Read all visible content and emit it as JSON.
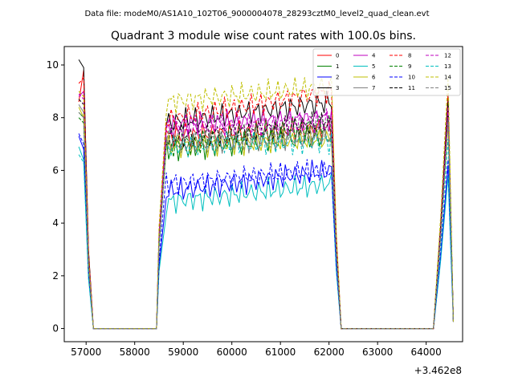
{
  "chart_data": {
    "type": "line",
    "suptitle": "Data file: modeM0/AS1A10_102T06_9000004078_28293cztM0_level2_quad_clean.evt",
    "title": "Quadrant 3 module wise count rates with 100.0s bins.",
    "xlabel": "",
    "ylabel": "",
    "x_offset_label": "+3.462e8",
    "xlim": [
      56550,
      64750
    ],
    "ylim": [
      -0.5,
      10.7
    ],
    "x_ticks": [
      57000,
      58000,
      59000,
      60000,
      61000,
      62000,
      63000,
      64000
    ],
    "x_tick_labels": [
      "57000",
      "58000",
      "59000",
      "60000",
      "61000",
      "62000",
      "63000",
      "64000"
    ],
    "y_ticks": [
      0,
      2,
      4,
      6,
      8,
      10
    ],
    "y_tick_labels": [
      "0",
      "2",
      "4",
      "6",
      "8",
      "10"
    ],
    "grid": false,
    "legend_position": "top-right",
    "legend_columns": 4,
    "series": [
      {
        "name": "0",
        "color": "#ff0000",
        "dash": "solid",
        "head": [
          8.6,
          9.8
        ],
        "b1": 7.3,
        "b2": 7.6,
        "tail": 8.5
      },
      {
        "name": "1",
        "color": "#008000",
        "dash": "solid",
        "head": [
          8.2,
          8.0
        ],
        "b1": 6.8,
        "b2": 7.3,
        "tail": 8.2
      },
      {
        "name": "2",
        "color": "#0000ff",
        "dash": "solid",
        "head": [
          7.3,
          6.8
        ],
        "b1": 5.2,
        "b2": 6.0,
        "tail": 6.2
      },
      {
        "name": "3",
        "color": "#000000",
        "dash": "solid",
        "head": [
          10.2,
          9.9
        ],
        "b1": 7.8,
        "b2": 8.6,
        "tail": 8.8
      },
      {
        "name": "4",
        "color": "#bf00bf",
        "dash": "solid",
        "head": [
          8.8,
          9.0
        ],
        "b1": 7.7,
        "b2": 8.0,
        "tail": 8.3
      },
      {
        "name": "5",
        "color": "#00bfbf",
        "dash": "solid",
        "head": [
          6.9,
          6.4
        ],
        "b1": 4.8,
        "b2": 5.5,
        "tail": 5.8
      },
      {
        "name": "6",
        "color": "#bfbf00",
        "dash": "solid",
        "head": [
          8.4,
          8.0
        ],
        "b1": 6.9,
        "b2": 7.2,
        "tail": 7.8
      },
      {
        "name": "7",
        "color": "#808080",
        "dash": "solid",
        "head": [
          8.5,
          8.2
        ],
        "b1": 7.0,
        "b2": 7.3,
        "tail": 8.0
      },
      {
        "name": "8",
        "color": "#ff0000",
        "dash": "dashed",
        "head": [
          9.3,
          9.5
        ],
        "b1": 7.9,
        "b2": 9.0,
        "tail": 8.9
      },
      {
        "name": "9",
        "color": "#008000",
        "dash": "dashed",
        "head": [
          8.0,
          7.8
        ],
        "b1": 6.9,
        "b2": 7.8,
        "tail": 8.1
      },
      {
        "name": "10",
        "color": "#0000ff",
        "dash": "dashed",
        "head": [
          7.4,
          7.0
        ],
        "b1": 5.5,
        "b2": 6.0,
        "tail": 6.4
      },
      {
        "name": "11",
        "color": "#000000",
        "dash": "dashed",
        "head": [
          8.7,
          8.5
        ],
        "b1": 7.2,
        "b2": 7.8,
        "tail": 8.6
      },
      {
        "name": "12",
        "color": "#bf00bf",
        "dash": "dashed",
        "head": [
          8.9,
          8.7
        ],
        "b1": 7.6,
        "b2": 7.9,
        "tail": 8.4
      },
      {
        "name": "13",
        "color": "#00bfbf",
        "dash": "dashed",
        "head": [
          6.6,
          6.3
        ],
        "b1": 6.9,
        "b2": 7.1,
        "tail": 7.2
      },
      {
        "name": "14",
        "color": "#bfbf00",
        "dash": "dashed",
        "head": [
          9.0,
          8.8
        ],
        "b1": 8.6,
        "b2": 9.2,
        "tail": 9.6
      },
      {
        "name": "15",
        "color": "#808080",
        "dash": "dashed",
        "head": [
          8.2,
          8.0
        ],
        "b1": 7.1,
        "b2": 7.4,
        "tail": 7.9
      }
    ]
  }
}
